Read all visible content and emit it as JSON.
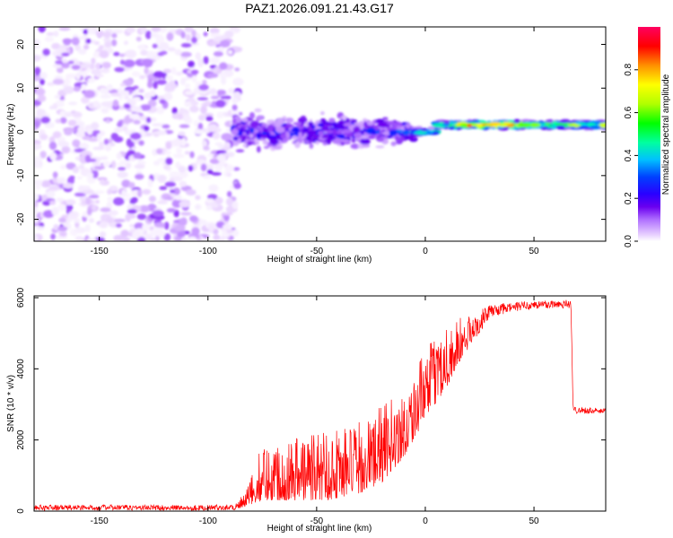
{
  "figure": {
    "title": "PAZ1.2026.091.21.43.G17"
  },
  "chart_data": [
    {
      "id": "spectrogram",
      "type": "heatmap",
      "title": "",
      "xlabel": "Height of straight line (km)",
      "ylabel": "Frequency (Hz)",
      "xlim": [
        -180,
        83
      ],
      "ylim": [
        -25,
        24
      ],
      "xticks": [
        -150,
        -100,
        -50,
        0,
        50
      ],
      "xtick_labels": [
        "-150",
        "-100",
        "-50",
        "0",
        "50"
      ],
      "yticks": [
        20,
        10,
        0,
        -10,
        -20
      ],
      "ytick_labels": [
        "20",
        "10",
        "0",
        "-10",
        "-20"
      ],
      "colorbar": {
        "label": "Normalized spectral amplitude",
        "range": [
          0,
          1
        ],
        "ticks": [
          0.0,
          0.2,
          0.4,
          0.6,
          0.8
        ],
        "tick_labels": [
          "0.0",
          "0.2",
          "0.4",
          "0.6",
          "0.8"
        ],
        "colormap": [
          "#ffffff",
          "#e8d0ff",
          "#b070ff",
          "#6a00f0",
          "#2a00ff",
          "#0040ff",
          "#00c0ff",
          "#00ffa0",
          "#00ff00",
          "#b0ff00",
          "#ffff00",
          "#ff9000",
          "#ff0000",
          "#ff0060"
        ]
      },
      "description_segments": [
        {
          "x_range": [
            -180,
            -90
          ],
          "freq_range": [
            -25,
            24
          ],
          "amplitude": "noise 0.0-0.1"
        },
        {
          "x_range": [
            -88,
            -5
          ],
          "freq_center": 0,
          "freq_spread": 6,
          "amplitude": "0.1-0.35"
        },
        {
          "x_range": [
            -5,
            83
          ],
          "freq_center": 1,
          "freq_spread": 1.2,
          "amplitude": "0.3-0.9"
        }
      ]
    },
    {
      "id": "snr",
      "type": "line",
      "title": "",
      "xlabel": "Height of straight line (km)",
      "ylabel": "SNR (10 * v/v)",
      "xlim": [
        -180,
        83
      ],
      "ylim": [
        0,
        6050
      ],
      "xticks": [
        -150,
        -100,
        -50,
        0,
        50
      ],
      "xtick_labels": [
        "-150",
        "-100",
        "-50",
        "0",
        "50"
      ],
      "yticks": [
        0,
        2000,
        4000,
        6000
      ],
      "ytick_labels": [
        "0",
        "2000",
        "4000",
        "6000"
      ],
      "line_color": "#ff0000",
      "series_envelope": [
        {
          "x": -180,
          "low": 20,
          "high": 180
        },
        {
          "x": -100,
          "low": 20,
          "high": 170
        },
        {
          "x": -88,
          "low": 30,
          "high": 200
        },
        {
          "x": -83,
          "low": 100,
          "high": 500
        },
        {
          "x": -75,
          "low": 300,
          "high": 1900
        },
        {
          "x": -60,
          "low": 300,
          "high": 2200
        },
        {
          "x": -45,
          "low": 300,
          "high": 2400
        },
        {
          "x": -30,
          "low": 500,
          "high": 2500
        },
        {
          "x": -20,
          "low": 800,
          "high": 3000
        },
        {
          "x": -10,
          "low": 1500,
          "high": 3400
        },
        {
          "x": 0,
          "low": 2600,
          "high": 4500
        },
        {
          "x": 10,
          "low": 3500,
          "high": 5400
        },
        {
          "x": 20,
          "low": 4600,
          "high": 5500
        },
        {
          "x": 30,
          "low": 5450,
          "high": 5800
        },
        {
          "x": 45,
          "low": 5650,
          "high": 5900
        },
        {
          "x": 60,
          "low": 5700,
          "high": 5950
        },
        {
          "x": 67,
          "low": 5700,
          "high": 5950
        },
        {
          "x": 68,
          "low": 2750,
          "high": 2950
        },
        {
          "x": 83,
          "low": 2720,
          "high": 2880
        }
      ]
    }
  ]
}
